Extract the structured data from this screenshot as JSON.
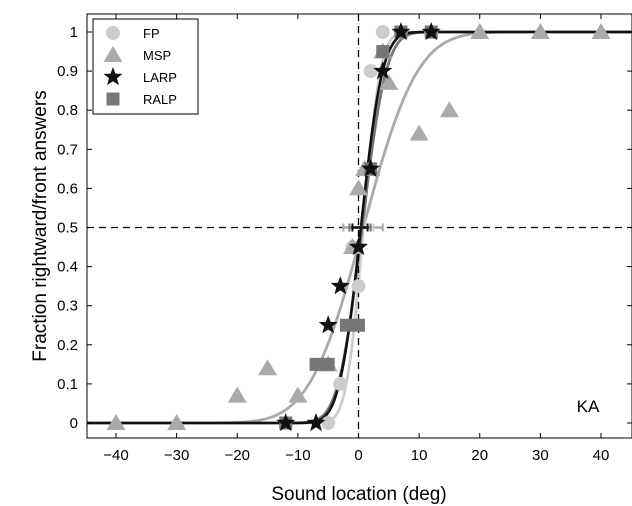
{
  "chart_data": {
    "type": "scatter",
    "title": "",
    "xlabel": "Sound location (deg)",
    "ylabel": "Fraction rightward/front answers",
    "xlim": [
      -45,
      45
    ],
    "ylim": [
      -0.05,
      1.05
    ],
    "xticks": [
      -40,
      -30,
      -20,
      -10,
      0,
      10,
      20,
      30,
      40
    ],
    "yticks": [
      0,
      0.1,
      0.2,
      0.3,
      0.4,
      0.5,
      0.6,
      0.7,
      0.8,
      0.9,
      1
    ],
    "xtick_labels": [
      "−40",
      "−30",
      "−20",
      "−10",
      "0",
      "10",
      "20",
      "30",
      "40"
    ],
    "ytick_labels": [
      "0",
      "0.1",
      "0.2",
      "0.3",
      "0.4",
      "0.5",
      "0.6",
      "0.7",
      "0.8",
      "0.9",
      "1"
    ],
    "grid": false,
    "legend_position": "top-left",
    "annotation": "KA",
    "reference_lines": {
      "x": 0,
      "y": 0.5
    },
    "series": [
      {
        "name": "FP",
        "marker": "circle",
        "color": "#cccccc",
        "points": [
          {
            "x": -5,
            "y": 0
          },
          {
            "x": -3,
            "y": 0.1
          },
          {
            "x": -1,
            "y": 0.45
          },
          {
            "x": 0,
            "y": 0.35
          },
          {
            "x": 2,
            "y": 0.9
          },
          {
            "x": 4,
            "y": 1
          },
          {
            "x": 7,
            "y": 1
          },
          {
            "x": 12,
            "y": 1
          }
        ],
        "curve": {
          "mu": 0.8,
          "sigma": 2.2
        },
        "error_bar": {
          "x": 0.8,
          "y": 0.5,
          "low": -1,
          "high": 2.5
        }
      },
      {
        "name": "MSP",
        "marker": "triangle",
        "color": "#aaaaaa",
        "points": [
          {
            "x": -40,
            "y": 0
          },
          {
            "x": -30,
            "y": 0
          },
          {
            "x": -20,
            "y": 0.07
          },
          {
            "x": -15,
            "y": 0.14
          },
          {
            "x": -10,
            "y": 0.07
          },
          {
            "x": -5,
            "y": 0.15
          },
          {
            "x": -1,
            "y": 0.45
          },
          {
            "x": 0,
            "y": 0.6
          },
          {
            "x": 1,
            "y": 0.65
          },
          {
            "x": 2,
            "y": 0.65
          },
          {
            "x": 4,
            "y": 0.95
          },
          {
            "x": 5,
            "y": 0.87
          },
          {
            "x": 10,
            "y": 0.74
          },
          {
            "x": 15,
            "y": 0.8
          },
          {
            "x": 20,
            "y": 1
          },
          {
            "x": 30,
            "y": 1
          },
          {
            "x": 40,
            "y": 1
          }
        ],
        "curve": {
          "mu": 0.8,
          "sigma": 7
        },
        "error_bar": {
          "x": 0.8,
          "y": 0.5,
          "low": -2.5,
          "high": 4
        }
      },
      {
        "name": "LARP",
        "marker": "star",
        "color": "#111111",
        "points": [
          {
            "x": -12,
            "y": 0
          },
          {
            "x": -7,
            "y": 0
          },
          {
            "x": -5,
            "y": 0.25
          },
          {
            "x": -3,
            "y": 0.35
          },
          {
            "x": 0,
            "y": 0.45
          },
          {
            "x": 2,
            "y": 0.65
          },
          {
            "x": 4,
            "y": 0.9
          },
          {
            "x": 7,
            "y": 1
          },
          {
            "x": 12,
            "y": 1
          }
        ],
        "curve": {
          "mu": 0.4,
          "sigma": 2.8
        },
        "error_bar": {
          "x": 0.4,
          "y": 0.5,
          "low": -1,
          "high": 1.5
        }
      },
      {
        "name": "RALP",
        "marker": "square",
        "color": "#777777",
        "points": [
          {
            "x": -12,
            "y": 0
          },
          {
            "x": -7,
            "y": 0.15
          },
          {
            "x": -5,
            "y": 0.15
          },
          {
            "x": -2,
            "y": 0.25
          },
          {
            "x": 0,
            "y": 0.25
          },
          {
            "x": 2,
            "y": 0.65
          },
          {
            "x": 4,
            "y": 0.95
          },
          {
            "x": 7,
            "y": 1
          },
          {
            "x": 12,
            "y": 1
          }
        ],
        "curve": {
          "mu": 0.6,
          "sigma": 3.1
        },
        "error_bar": {
          "x": 0.6,
          "y": 0.5,
          "low": -1.5,
          "high": 2
        }
      }
    ]
  }
}
